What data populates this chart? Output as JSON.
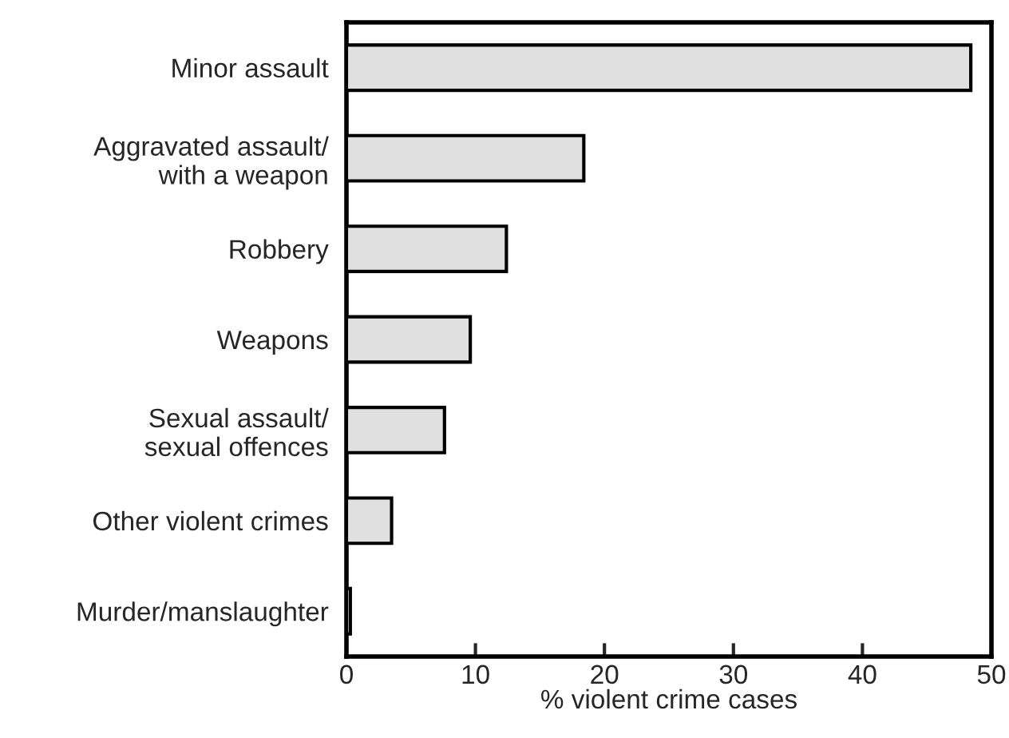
{
  "chart_data": {
    "type": "bar",
    "orientation": "horizontal",
    "xlabel": "% violent crime cases",
    "categories": [
      "Minor assault",
      "Aggravated assault/\nwith a weapon",
      "Robbery",
      "Weapons",
      "Sexual assault/\nsexual offences",
      "Other violent crimes",
      "Murder/manslaughter"
    ],
    "values": [
      48.4,
      18.4,
      12.4,
      9.6,
      7.6,
      3.5,
      0.3
    ],
    "color": "#e0e0e0",
    "xlim": [
      0,
      50
    ],
    "xticks": [
      0,
      10,
      20,
      30,
      40,
      50
    ],
    "grid": false
  }
}
